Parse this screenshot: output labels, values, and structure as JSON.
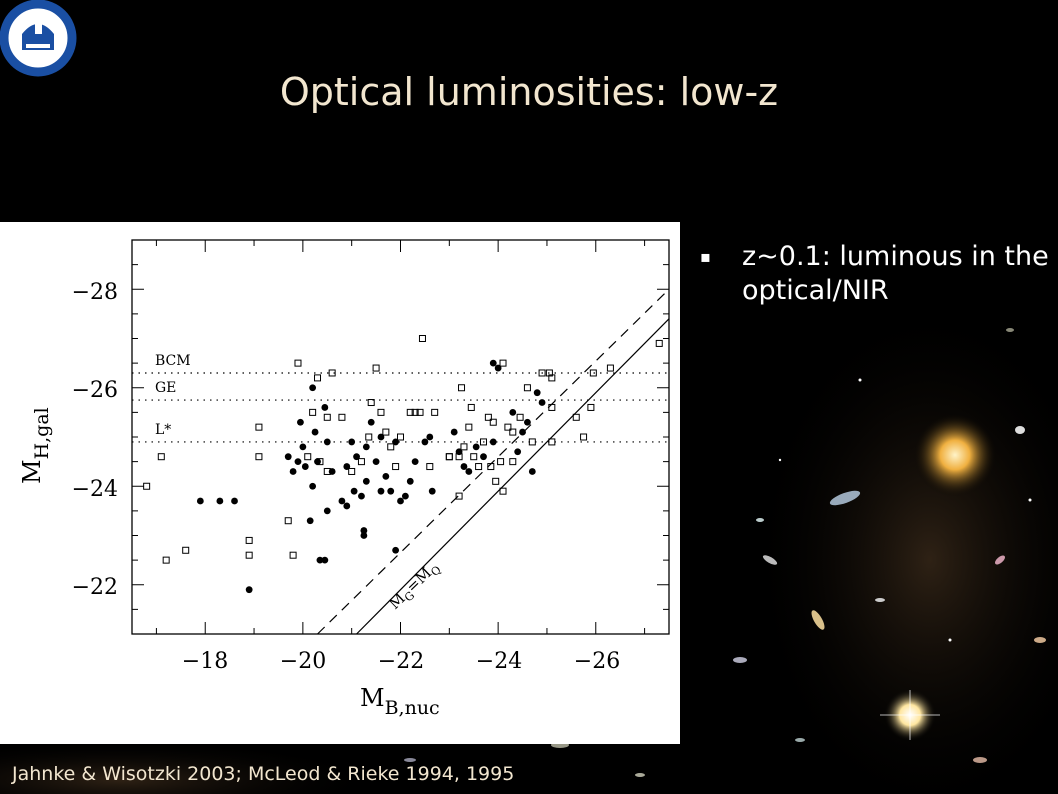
{
  "title": "Optical luminosities: low-z",
  "bullet": {
    "marker": "▪",
    "text": "z~0.1: luminous in the optical/NIR"
  },
  "citation": "Jahnke & Wisotzki 2003; McLeod & Rieke 1994, 1995",
  "chart_data": {
    "type": "scatter",
    "xlabel_main": "M",
    "xlabel_sub": "B,nuc",
    "ylabel_main": "M",
    "ylabel_sub": "H,gal",
    "xlim": [
      -16.5,
      -27.5
    ],
    "ylim": [
      -21,
      -29
    ],
    "x_ticks": [
      -18,
      -20,
      -22,
      -24,
      -26
    ],
    "y_ticks": [
      -22,
      -24,
      -26,
      -28
    ],
    "tick_labels_x": [
      "−18",
      "−20",
      "−22",
      "−24",
      "−26"
    ],
    "tick_labels_y": [
      "−22",
      "−24",
      "−26",
      "−28"
    ],
    "reference_lines": [
      {
        "label": "BCM",
        "y": -26.3
      },
      {
        "label": "GE",
        "y": -25.75
      },
      {
        "label": "L*",
        "y": -24.9
      }
    ],
    "diagonal_label": "M_G=M_Q",
    "diagonal_label_main1": "M",
    "diagonal_label_sub1": "G",
    "diagonal_label_eq": "=",
    "diagonal_label_main2": "M",
    "diagonal_label_sub2": "Q",
    "diagonal_lines": [
      {
        "style": "solid",
        "x0": -21.1,
        "y0": -21,
        "x1": -27.5,
        "y1": -27.4
      },
      {
        "style": "dashed",
        "x0": -20.3,
        "y0": -21,
        "x1": -27.5,
        "y1": -28.0
      }
    ],
    "series": [
      {
        "marker": "filled-circle",
        "points": [
          [
            -17.9,
            -23.7
          ],
          [
            -18.3,
            -23.7
          ],
          [
            -18.6,
            -23.7
          ],
          [
            -18.9,
            -21.9
          ],
          [
            -19.7,
            -24.6
          ],
          [
            -19.8,
            -24.3
          ],
          [
            -19.9,
            -24.5
          ],
          [
            -20.0,
            -24.8
          ],
          [
            -19.95,
            -25.3
          ],
          [
            -20.05,
            -24.4
          ],
          [
            -20.15,
            -23.3
          ],
          [
            -20.2,
            -24.0
          ],
          [
            -20.3,
            -24.5
          ],
          [
            -20.35,
            -22.5
          ],
          [
            -20.2,
            -26.0
          ],
          [
            -20.25,
            -25.1
          ],
          [
            -20.45,
            -25.6
          ],
          [
            -20.5,
            -24.9
          ],
          [
            -20.5,
            -23.5
          ],
          [
            -20.45,
            -22.5
          ],
          [
            -20.6,
            -24.3
          ],
          [
            -20.8,
            -23.7
          ],
          [
            -20.9,
            -24.4
          ],
          [
            -20.9,
            -23.6
          ],
          [
            -21.0,
            -24.9
          ],
          [
            -21.05,
            -23.9
          ],
          [
            -21.1,
            -24.6
          ],
          [
            -21.2,
            -23.8
          ],
          [
            -21.25,
            -23.1
          ],
          [
            -21.25,
            -23.0
          ],
          [
            -21.3,
            -24.8
          ],
          [
            -21.3,
            -24.1
          ],
          [
            -21.4,
            -25.3
          ],
          [
            -21.5,
            -24.5
          ],
          [
            -21.6,
            -23.9
          ],
          [
            -21.6,
            -25.0
          ],
          [
            -21.7,
            -24.2
          ],
          [
            -21.8,
            -23.9
          ],
          [
            -21.9,
            -24.9
          ],
          [
            -21.9,
            -22.7
          ],
          [
            -22.0,
            -23.7
          ],
          [
            -22.1,
            -23.8
          ],
          [
            -22.2,
            -24.1
          ],
          [
            -22.3,
            -24.5
          ],
          [
            -22.5,
            -24.9
          ],
          [
            -22.6,
            -25.0
          ],
          [
            -22.65,
            -23.9
          ],
          [
            -23.1,
            -25.1
          ],
          [
            -23.2,
            -24.7
          ],
          [
            -23.3,
            -24.4
          ],
          [
            -23.4,
            -24.3
          ],
          [
            -23.55,
            -24.8
          ],
          [
            -23.7,
            -24.6
          ],
          [
            -23.9,
            -24.9
          ],
          [
            -23.9,
            -26.5
          ],
          [
            -24.0,
            -26.4
          ],
          [
            -24.3,
            -25.5
          ],
          [
            -24.4,
            -24.7
          ],
          [
            -24.5,
            -25.1
          ],
          [
            -24.6,
            -25.3
          ],
          [
            -24.8,
            -25.9
          ],
          [
            -24.9,
            -25.7
          ],
          [
            -24.7,
            -24.3
          ]
        ]
      },
      {
        "marker": "open-square",
        "points": [
          [
            -16.8,
            -24.0
          ],
          [
            -17.1,
            -24.6
          ],
          [
            -17.2,
            -22.5
          ],
          [
            -17.6,
            -22.7
          ],
          [
            -18.9,
            -22.9
          ],
          [
            -18.9,
            -22.6
          ],
          [
            -19.1,
            -24.6
          ],
          [
            -19.1,
            -25.2
          ],
          [
            -19.8,
            -22.6
          ],
          [
            -19.9,
            -26.5
          ],
          [
            -19.7,
            -23.3
          ],
          [
            -20.1,
            -24.6
          ],
          [
            -20.2,
            -25.5
          ],
          [
            -20.3,
            -26.2
          ],
          [
            -20.35,
            -24.5
          ],
          [
            -20.5,
            -24.3
          ],
          [
            -20.5,
            -25.4
          ],
          [
            -20.6,
            -26.3
          ],
          [
            -20.8,
            -25.4
          ],
          [
            -21.0,
            -24.3
          ],
          [
            -21.2,
            -24.5
          ],
          [
            -21.35,
            -25.0
          ],
          [
            -21.4,
            -25.7
          ],
          [
            -21.5,
            -26.4
          ],
          [
            -21.6,
            -25.5
          ],
          [
            -21.7,
            -25.1
          ],
          [
            -21.8,
            -24.8
          ],
          [
            -21.9,
            -24.4
          ],
          [
            -22.0,
            -25.0
          ],
          [
            -22.2,
            -25.5
          ],
          [
            -22.3,
            -25.5
          ],
          [
            -22.4,
            -25.5
          ],
          [
            -22.45,
            -27.0
          ],
          [
            -22.6,
            -24.4
          ],
          [
            -22.7,
            -25.5
          ],
          [
            -23.0,
            -24.6
          ],
          [
            -23.2,
            -24.6
          ],
          [
            -23.25,
            -26.0
          ],
          [
            -23.3,
            -24.8
          ],
          [
            -23.4,
            -25.2
          ],
          [
            -23.45,
            -25.6
          ],
          [
            -23.5,
            -24.6
          ],
          [
            -23.6,
            -24.4
          ],
          [
            -23.7,
            -24.9
          ],
          [
            -23.8,
            -25.4
          ],
          [
            -23.85,
            -24.4
          ],
          [
            -23.95,
            -24.1
          ],
          [
            -24.05,
            -24.5
          ],
          [
            -24.1,
            -26.5
          ],
          [
            -24.1,
            -23.9
          ],
          [
            -24.2,
            -25.2
          ],
          [
            -24.3,
            -25.1
          ],
          [
            -24.3,
            -24.5
          ],
          [
            -24.45,
            -25.4
          ],
          [
            -24.6,
            -26.0
          ],
          [
            -24.7,
            -24.9
          ],
          [
            -24.9,
            -26.3
          ],
          [
            -25.05,
            -26.3
          ],
          [
            -25.1,
            -26.2
          ],
          [
            -25.1,
            -25.6
          ],
          [
            -25.1,
            -24.9
          ],
          [
            -25.6,
            -25.4
          ],
          [
            -25.75,
            -25.0
          ],
          [
            -25.9,
            -25.6
          ],
          [
            -25.95,
            -26.3
          ],
          [
            -26.3,
            -26.4
          ],
          [
            -27.3,
            -26.9
          ],
          [
            -23.0,
            -24.6
          ],
          [
            -23.2,
            -23.8
          ],
          [
            -23.9,
            -25.3
          ]
        ]
      }
    ]
  },
  "colors": {
    "title": "#f2e6cf",
    "citation": "#f2e6cf",
    "bullet": "#ffffff",
    "plot_bg": "#ffffff",
    "logo_blue": "#1a4fa3"
  },
  "icons": {
    "logo": "mpia-logo-icon",
    "bullet": "square-bullet-icon"
  }
}
